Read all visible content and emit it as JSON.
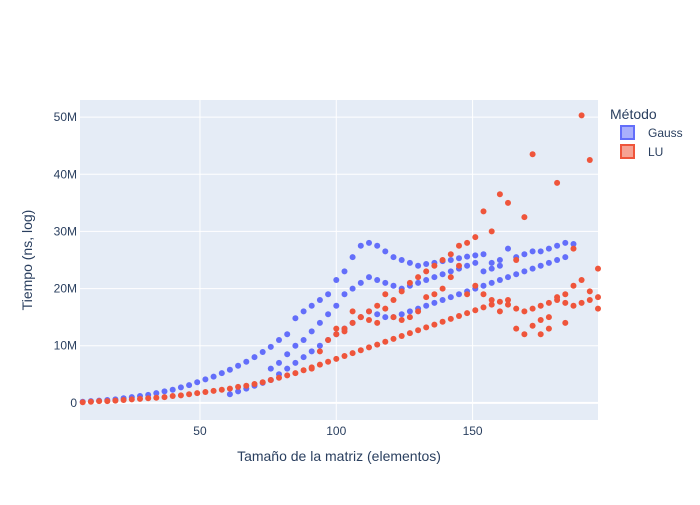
{
  "chart_data": {
    "type": "scatter",
    "xlabel": "Tamaño de la matriz (elementos)",
    "ylabel": "Tiempo (ns, log)",
    "xlim": [
      6,
      196
    ],
    "ylim": [
      -3000000,
      53000000
    ],
    "x_ticks": [
      50,
      100,
      150
    ],
    "x_tick_labels": [
      "50",
      "100",
      "150"
    ],
    "y_ticks": [
      0,
      10000000,
      20000000,
      30000000,
      40000000,
      50000000
    ],
    "y_tick_labels": [
      "0",
      "10M",
      "20M",
      "30M",
      "40M",
      "50M"
    ],
    "grid": true,
    "legend": {
      "title": "Método",
      "position": "right"
    },
    "series": [
      {
        "name": "Gauss",
        "color": "#636efa",
        "points": [
          [
            7,
            0.2
          ],
          [
            10,
            0.3
          ],
          [
            13,
            0.4
          ],
          [
            16,
            0.5
          ],
          [
            19,
            0.6
          ],
          [
            22,
            0.8
          ],
          [
            25,
            1.0
          ],
          [
            28,
            1.2
          ],
          [
            31,
            1.4
          ],
          [
            34,
            1.7
          ],
          [
            37,
            2.0
          ],
          [
            40,
            2.3
          ],
          [
            43,
            2.7
          ],
          [
            46,
            3.1
          ],
          [
            49,
            3.6
          ],
          [
            52,
            4.1
          ],
          [
            55,
            4.6
          ],
          [
            58,
            5.2
          ],
          [
            61,
            5.8
          ],
          [
            64,
            6.5
          ],
          [
            67,
            7.2
          ],
          [
            70,
            8.0
          ],
          [
            73,
            8.9
          ],
          [
            76,
            9.8
          ],
          [
            79,
            11.0
          ],
          [
            82,
            12.0
          ],
          [
            85,
            14.8
          ],
          [
            88,
            16.0
          ],
          [
            91,
            17.0
          ],
          [
            94,
            18.0
          ],
          [
            97,
            19.0
          ],
          [
            100,
            21.5
          ],
          [
            103,
            23.0
          ],
          [
            106,
            25.5
          ],
          [
            109,
            27.5
          ],
          [
            112,
            28.0
          ],
          [
            115,
            27.5
          ],
          [
            118,
            26.5
          ],
          [
            121,
            25.5
          ],
          [
            124,
            25.0
          ],
          [
            127,
            24.5
          ],
          [
            130,
            24.0
          ],
          [
            133,
            24.3
          ],
          [
            136,
            24.5
          ],
          [
            139,
            24.8
          ],
          [
            142,
            25.0
          ],
          [
            145,
            25.3
          ],
          [
            148,
            25.6
          ],
          [
            151,
            25.8
          ],
          [
            154,
            26.0
          ],
          [
            157,
            24.5
          ],
          [
            160,
            25.0
          ],
          [
            163,
            27.0
          ],
          [
            166,
            25.5
          ],
          [
            169,
            26.0
          ],
          [
            172,
            26.5
          ],
          [
            175,
            26.5
          ],
          [
            178,
            27.0
          ],
          [
            181,
            27.5
          ],
          [
            184,
            28.0
          ],
          [
            187,
            27.8
          ],
          [
            61,
            1.5
          ],
          [
            64,
            2.0
          ],
          [
            67,
            2.5
          ],
          [
            70,
            3.0
          ],
          [
            73,
            3.5
          ],
          [
            76,
            4.0
          ],
          [
            79,
            5.0
          ],
          [
            82,
            6.0
          ],
          [
            85,
            7.0
          ],
          [
            88,
            8.0
          ],
          [
            91,
            9.0
          ],
          [
            94,
            10.0
          ],
          [
            97,
            11.0
          ],
          [
            100,
            12.0
          ],
          [
            103,
            13.0
          ],
          [
            106,
            14.0
          ],
          [
            109,
            15.0
          ],
          [
            112,
            16.0
          ],
          [
            115,
            15.5
          ],
          [
            118,
            15.0
          ],
          [
            121,
            15.0
          ],
          [
            124,
            15.5
          ],
          [
            127,
            16.0
          ],
          [
            130,
            16.5
          ],
          [
            133,
            17.0
          ],
          [
            136,
            17.5
          ],
          [
            139,
            18.0
          ],
          [
            142,
            18.5
          ],
          [
            145,
            19.0
          ],
          [
            148,
            19.5
          ],
          [
            151,
            20.0
          ],
          [
            154,
            20.5
          ],
          [
            157,
            21.0
          ],
          [
            160,
            21.5
          ],
          [
            163,
            22.0
          ],
          [
            166,
            22.5
          ],
          [
            169,
            23.0
          ],
          [
            172,
            23.5
          ],
          [
            175,
            24.0
          ],
          [
            178,
            24.5
          ],
          [
            181,
            25.0
          ],
          [
            184,
            25.5
          ],
          [
            76,
            6.0
          ],
          [
            79,
            7.0
          ],
          [
            82,
            8.5
          ],
          [
            85,
            10.0
          ],
          [
            88,
            11.0
          ],
          [
            91,
            12.5
          ],
          [
            94,
            14.0
          ],
          [
            97,
            15.5
          ],
          [
            100,
            17.0
          ],
          [
            103,
            19.0
          ],
          [
            106,
            20.0
          ],
          [
            109,
            21.0
          ],
          [
            112,
            22.0
          ],
          [
            115,
            21.5
          ],
          [
            118,
            21.0
          ],
          [
            121,
            20.5
          ],
          [
            124,
            20.0
          ],
          [
            127,
            20.5
          ],
          [
            130,
            21.0
          ],
          [
            133,
            21.5
          ],
          [
            136,
            22.0
          ],
          [
            139,
            22.5
          ],
          [
            142,
            23.0
          ],
          [
            145,
            23.5
          ],
          [
            148,
            24.0
          ],
          [
            151,
            24.5
          ],
          [
            154,
            23.0
          ],
          [
            157,
            23.5
          ],
          [
            160,
            24.0
          ]
        ]
      },
      {
        "name": "LU",
        "color": "#ef553b",
        "points": [
          [
            7,
            0.1
          ],
          [
            10,
            0.2
          ],
          [
            13,
            0.3
          ],
          [
            16,
            0.3
          ],
          [
            19,
            0.4
          ],
          [
            22,
            0.5
          ],
          [
            25,
            0.6
          ],
          [
            28,
            0.7
          ],
          [
            31,
            0.8
          ],
          [
            34,
            0.9
          ],
          [
            37,
            1.0
          ],
          [
            40,
            1.2
          ],
          [
            43,
            1.3
          ],
          [
            46,
            1.5
          ],
          [
            49,
            1.7
          ],
          [
            52,
            1.9
          ],
          [
            55,
            2.1
          ],
          [
            58,
            2.3
          ],
          [
            61,
            2.5
          ],
          [
            64,
            2.8
          ],
          [
            67,
            3.0
          ],
          [
            70,
            3.3
          ],
          [
            73,
            3.6
          ],
          [
            76,
            4.0
          ],
          [
            79,
            4.4
          ],
          [
            82,
            4.8
          ],
          [
            85,
            5.2
          ],
          [
            88,
            5.7
          ],
          [
            91,
            6.2
          ],
          [
            94,
            6.7
          ],
          [
            97,
            7.2
          ],
          [
            100,
            7.7
          ],
          [
            103,
            8.2
          ],
          [
            106,
            8.7
          ],
          [
            109,
            9.2
          ],
          [
            112,
            9.7
          ],
          [
            115,
            10.2
          ],
          [
            118,
            10.7
          ],
          [
            121,
            11.2
          ],
          [
            124,
            11.7
          ],
          [
            127,
            12.2
          ],
          [
            130,
            12.7
          ],
          [
            133,
            13.2
          ],
          [
            136,
            13.7
          ],
          [
            139,
            14.2
          ],
          [
            142,
            14.7
          ],
          [
            145,
            15.2
          ],
          [
            148,
            15.7
          ],
          [
            151,
            16.2
          ],
          [
            154,
            16.7
          ],
          [
            157,
            17.2
          ],
          [
            160,
            17.7
          ],
          [
            163,
            17.2
          ],
          [
            166,
            16.5
          ],
          [
            169,
            16.0
          ],
          [
            172,
            16.5
          ],
          [
            175,
            17.0
          ],
          [
            178,
            17.5
          ],
          [
            181,
            18.0
          ],
          [
            184,
            17.5
          ],
          [
            187,
            17.0
          ],
          [
            190,
            17.5
          ],
          [
            193,
            18.0
          ],
          [
            196,
            18.5
          ],
          [
            100,
            12.0
          ],
          [
            103,
            13.0
          ],
          [
            106,
            14.0
          ],
          [
            109,
            15.0
          ],
          [
            112,
            16.0
          ],
          [
            115,
            17.0
          ],
          [
            118,
            19.0
          ],
          [
            121,
            18.0
          ],
          [
            124,
            19.5
          ],
          [
            127,
            21.0
          ],
          [
            130,
            22.0
          ],
          [
            133,
            23.0
          ],
          [
            136,
            24.0
          ],
          [
            139,
            25.0
          ],
          [
            142,
            26.0
          ],
          [
            145,
            27.5
          ],
          [
            148,
            28.0
          ],
          [
            151,
            29.0
          ],
          [
            154,
            33.5
          ],
          [
            157,
            30.0
          ],
          [
            160,
            36.5
          ],
          [
            163,
            35.0
          ],
          [
            166,
            25.0
          ],
          [
            169,
            32.5
          ],
          [
            172,
            43.5
          ],
          [
            175,
            12.0
          ],
          [
            178,
            13.0
          ],
          [
            181,
            38.5
          ],
          [
            184,
            14.0
          ],
          [
            187,
            27.0
          ],
          [
            190,
            50.3
          ],
          [
            193,
            42.5
          ],
          [
            196,
            23.5
          ],
          [
            91,
            6.0
          ],
          [
            94,
            9.0
          ],
          [
            97,
            11.0
          ],
          [
            100,
            13.0
          ],
          [
            103,
            12.5
          ],
          [
            106,
            16.0
          ],
          [
            109,
            15.0
          ],
          [
            112,
            14.5
          ],
          [
            115,
            14.0
          ],
          [
            118,
            16.5
          ],
          [
            121,
            15.0
          ],
          [
            124,
            14.5
          ],
          [
            127,
            15.0
          ],
          [
            130,
            16.0
          ],
          [
            133,
            18.5
          ],
          [
            136,
            19.0
          ],
          [
            139,
            20.0
          ],
          [
            142,
            22.0
          ],
          [
            145,
            24.0
          ],
          [
            148,
            19.0
          ],
          [
            151,
            20.5
          ],
          [
            154,
            19.0
          ],
          [
            157,
            18.0
          ],
          [
            160,
            16.0
          ],
          [
            163,
            18.0
          ],
          [
            166,
            13.0
          ],
          [
            169,
            12.0
          ],
          [
            172,
            13.5
          ],
          [
            175,
            14.5
          ],
          [
            178,
            15.0
          ],
          [
            181,
            18.5
          ],
          [
            184,
            19.0
          ],
          [
            187,
            20.5
          ],
          [
            190,
            21.5
          ],
          [
            193,
            19.5
          ],
          [
            196,
            16.5
          ]
        ]
      }
    ]
  }
}
